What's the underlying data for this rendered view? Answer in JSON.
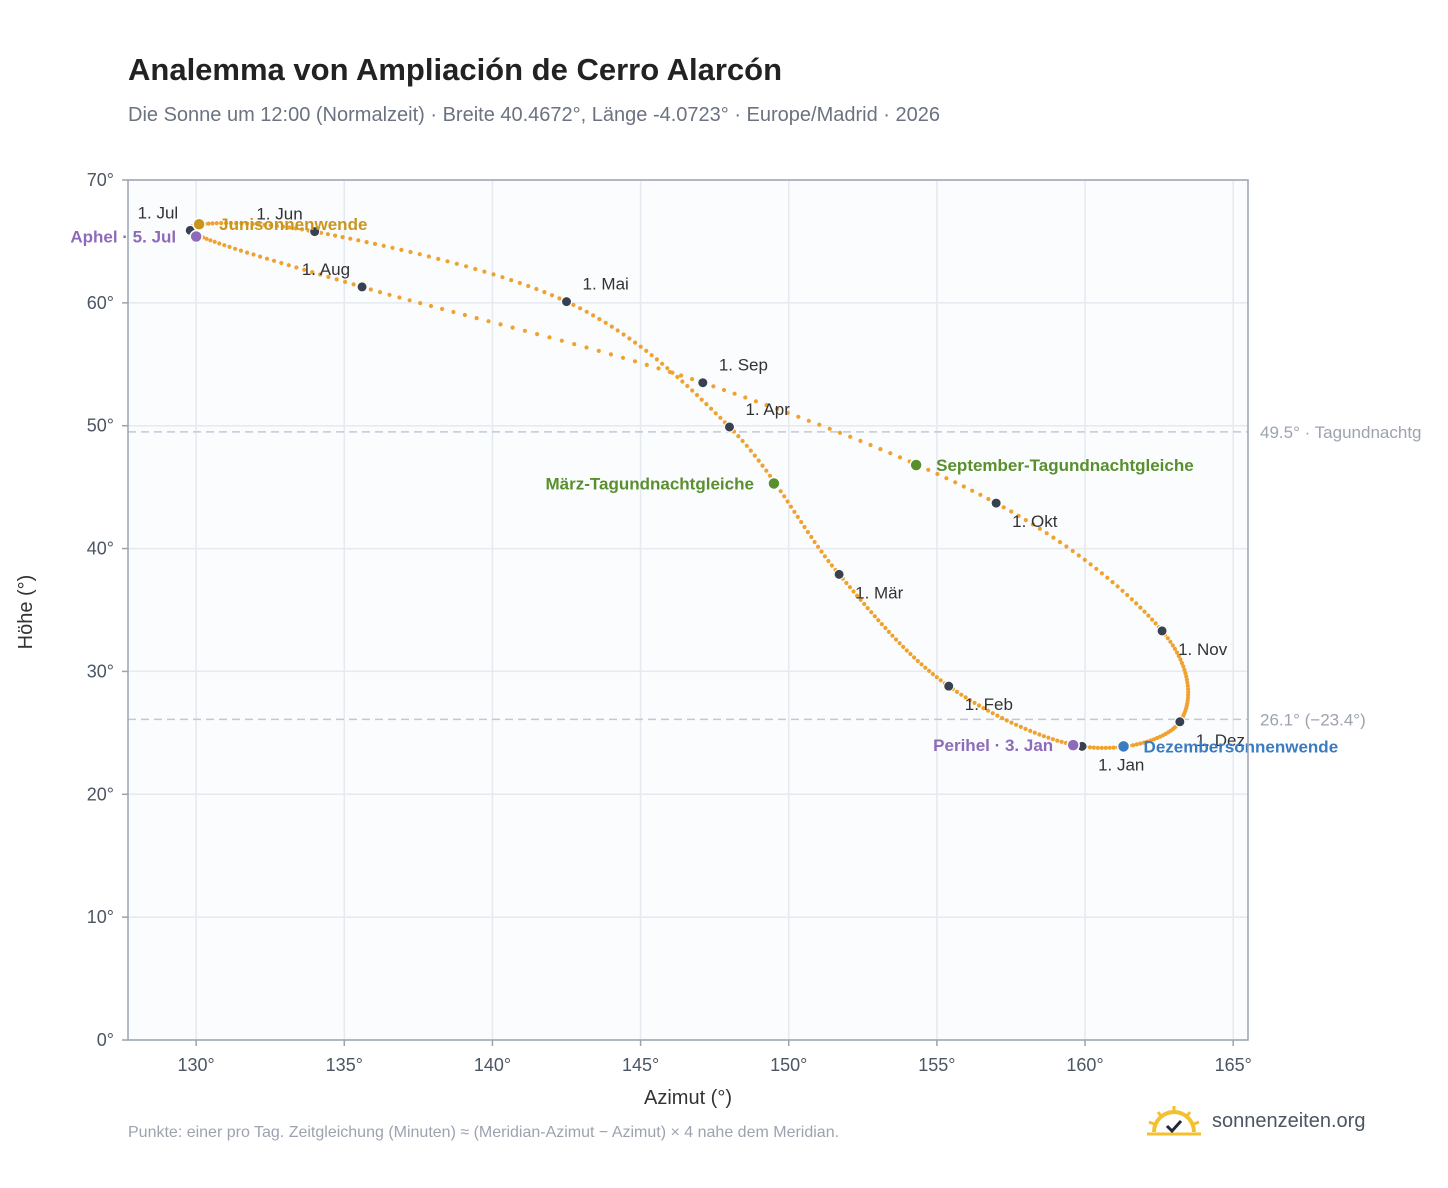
{
  "header": {
    "title": "Analemma von Ampliación de Cerro Alarcón",
    "subtitle": "Die Sonne um 12:00 (Normalzeit) · Breite 40.4672°, Länge -4.0723° · Europe/Madrid · 2026"
  },
  "footnote": "Punkte: einer pro Tag. Zeitgleichung (Minuten) ≈ (Meridian-Azimut − Azimut) × 4 nahe dem Meridian.",
  "brand": {
    "name": "sonnenzeiten.org",
    "icon": "sun-check-icon"
  },
  "colors": {
    "curve": "#f0a22e",
    "month_marker": "#374151",
    "solstice_june": "#c8961e",
    "solstice_december": "#3b7bbf",
    "equinox": "#5a8f2e",
    "apsis": "#8e6bb8",
    "reference_line": "#c1c9d6",
    "plot_background": "#fafcfe",
    "grid": "#e5e9f0"
  },
  "chart_data": {
    "type": "scatter",
    "xlabel": "Azimut (°)",
    "ylabel": "Höhe (°)",
    "xlim": [
      127.7,
      165.5
    ],
    "ylim": [
      0,
      70
    ],
    "x_ticks": [
      130,
      135,
      140,
      145,
      150,
      155,
      160,
      165
    ],
    "y_ticks": [
      0,
      10,
      20,
      30,
      40,
      50,
      60,
      70
    ],
    "tick_suffix": "°",
    "grid": true,
    "month_markers": [
      {
        "label": "1. Jan",
        "azimuth": 159.9,
        "altitude": 23.9
      },
      {
        "label": "1. Feb",
        "azimuth": 155.4,
        "altitude": 28.8
      },
      {
        "label": "1. Mär",
        "azimuth": 151.7,
        "altitude": 37.9
      },
      {
        "label": "1. Apr",
        "azimuth": 148.0,
        "altitude": 49.9
      },
      {
        "label": "1. Mai",
        "azimuth": 142.5,
        "altitude": 60.1
      },
      {
        "label": "1. Jun",
        "azimuth": 134.0,
        "altitude": 65.8
      },
      {
        "label": "1. Jul",
        "azimuth": 129.8,
        "altitude": 65.9
      },
      {
        "label": "1. Aug",
        "azimuth": 135.6,
        "altitude": 61.3
      },
      {
        "label": "1. Sep",
        "azimuth": 147.1,
        "altitude": 53.5
      },
      {
        "label": "1. Okt",
        "azimuth": 157.0,
        "altitude": 43.7
      },
      {
        "label": "1. Nov",
        "azimuth": 162.6,
        "altitude": 33.3
      },
      {
        "label": "1. Dez",
        "azimuth": 163.2,
        "altitude": 25.9
      }
    ],
    "events": [
      {
        "label": "Junisonnenwende",
        "azimuth": 130.1,
        "altitude": 66.4,
        "color": "#c8961e"
      },
      {
        "label": "Aphel · 5. Jul",
        "azimuth": 130.0,
        "altitude": 65.4,
        "color": "#8e6bb8"
      },
      {
        "label": "März-Tagundnachtgleiche",
        "azimuth": 149.5,
        "altitude": 45.3,
        "color": "#5a8f2e"
      },
      {
        "label": "September-Tagundnachtgleiche",
        "azimuth": 154.3,
        "altitude": 46.8,
        "color": "#5a8f2e"
      },
      {
        "label": "Perihel · 3. Jan",
        "azimuth": 159.6,
        "altitude": 24.0,
        "color": "#8e6bb8"
      },
      {
        "label": "Dezembersonnenwende",
        "azimuth": 161.3,
        "altitude": 23.9,
        "color": "#3b7bbf"
      }
    ],
    "reference_lines": [
      {
        "altitude": 49.5,
        "label": "49.5° · Tagundnachtg"
      },
      {
        "altitude": 26.1,
        "label": "26.1° (−23.4°)"
      }
    ]
  }
}
